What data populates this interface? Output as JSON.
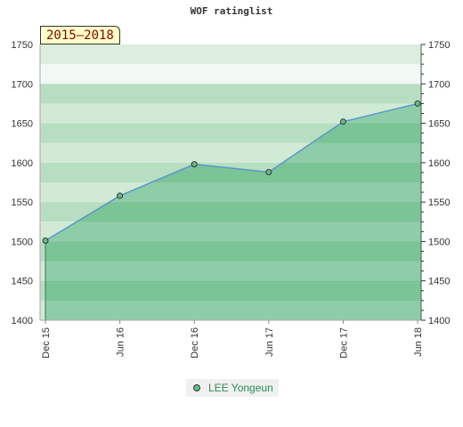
{
  "chart_data": {
    "type": "area",
    "title": "WOF ratinglist",
    "period_label": "2015–2018",
    "categories": [
      "Dec 15",
      "Jun 16",
      "Dec 16",
      "Jun 17",
      "Dec 17",
      "Jun 18"
    ],
    "series": [
      {
        "name": "LEE Yongeun",
        "values": [
          1501,
          1558,
          1598,
          1588,
          1652,
          1675
        ]
      }
    ],
    "ylim": [
      1400,
      1750
    ],
    "yticks": [
      1400,
      1450,
      1500,
      1550,
      1600,
      1650,
      1700,
      1750
    ],
    "legend": "bottom-center",
    "y_axis_sides": [
      "left",
      "right"
    ],
    "colors": {
      "line": "#5599cc",
      "area": "#66bb88",
      "marker": "#66bb88",
      "band_light": "#eef7ef",
      "band_dark": "#cfe8d5",
      "legend_text": "#2e8b57"
    }
  }
}
